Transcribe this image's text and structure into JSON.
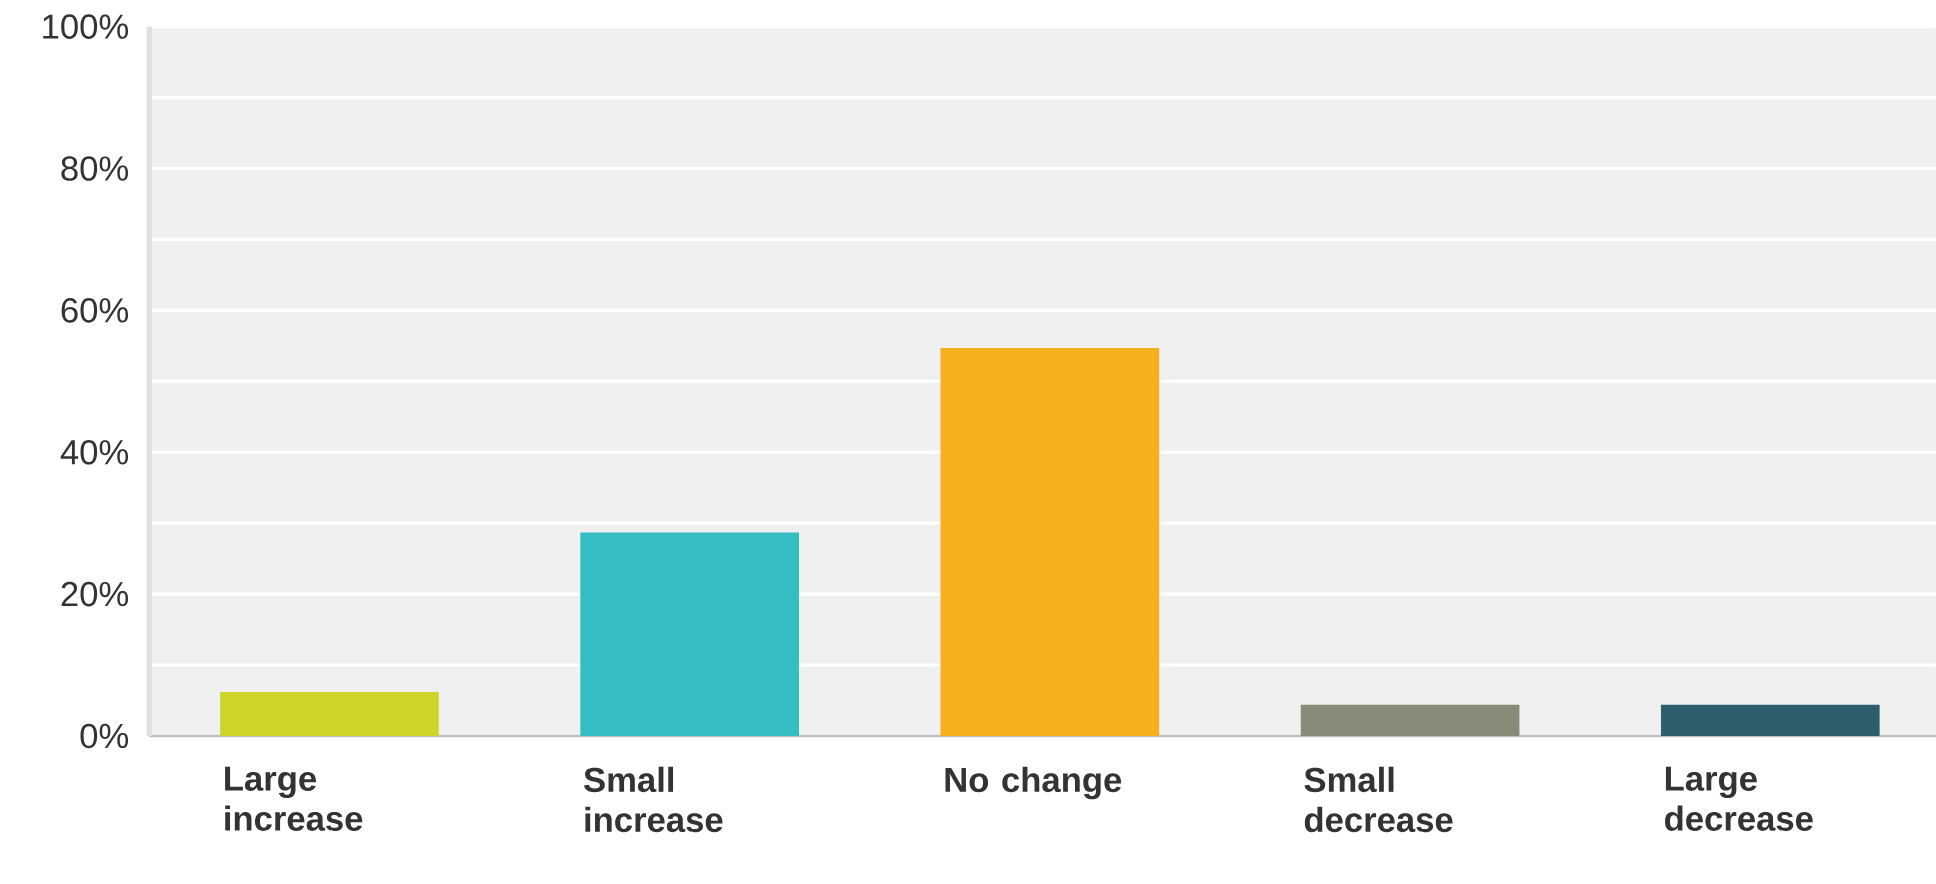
{
  "chart_data": {
    "type": "bar",
    "categories": [
      "Large increase",
      "Small increase",
      "No change",
      "Small decrease",
      "Large decrease"
    ],
    "values": [
      6.2,
      28.7,
      54.7,
      4.4,
      4.4
    ],
    "colors": [
      "#cdd52a",
      "#35bec1",
      "#f6b01e",
      "#8a8a78",
      "#2e5d6b"
    ],
    "ylim": [
      0,
      100
    ],
    "yticks": [
      {
        "value": 0,
        "label": "0%"
      },
      {
        "value": 10,
        "label": null
      },
      {
        "value": 20,
        "label": "20%"
      },
      {
        "value": 30,
        "label": null
      },
      {
        "value": 40,
        "label": "40%"
      },
      {
        "value": 50,
        "label": null
      },
      {
        "value": 60,
        "label": "60%"
      },
      {
        "value": 70,
        "label": null
      },
      {
        "value": 80,
        "label": "80%"
      },
      {
        "value": 90,
        "label": null
      },
      {
        "value": 100,
        "label": "100%"
      }
    ],
    "grid": "y"
  }
}
